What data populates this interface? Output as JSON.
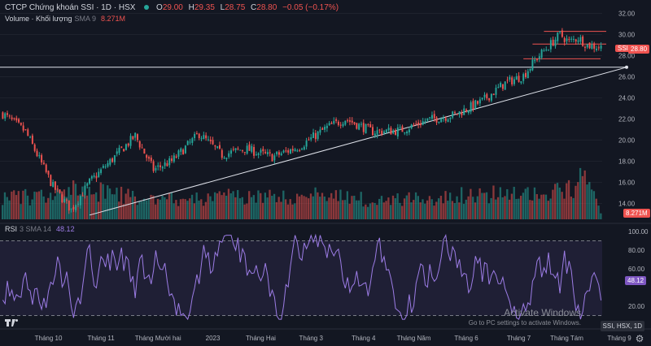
{
  "header": {
    "title": "CTCP Chứng khoán SSI · 1D · HSX",
    "ohlc": [
      {
        "label": "O",
        "value": "29.00"
      },
      {
        "label": "H",
        "value": "29.35"
      },
      {
        "label": "L",
        "value": "28.75"
      },
      {
        "label": "C",
        "value": "28.80"
      }
    ],
    "change": "−0.05 (−0.17%)"
  },
  "volume_legend": {
    "name": "Volume · Khối lượng",
    "ma": "SMA 9",
    "value": "8.271M"
  },
  "rsi_legend": {
    "name": "RSI",
    "params": "3 SMA 14",
    "value": "48.12"
  },
  "price_badge": {
    "symbol": "SSI",
    "value": "28.80"
  },
  "volume_badge": "8.271M",
  "rsi_badge": "48.12",
  "symbol_tag": "SSI, HSX, 1D",
  "watermark": {
    "line1": "Activate Windows",
    "line2": "Go to PC settings to activate Windows."
  },
  "colors": {
    "up": "#26a69a",
    "down": "#ef5350",
    "rsi": "#9c7ce5",
    "background": "#131722"
  },
  "chart_data": {
    "type": "candlestick",
    "price_axis_ticks": [
      "32.00",
      "30.00",
      "28.00",
      "26.00",
      "24.00",
      "22.00",
      "20.00",
      "18.00",
      "16.00",
      "14.00"
    ],
    "price_range": [
      12.5,
      32.5
    ],
    "rsi_axis_ticks": [
      "100.00",
      "80.00",
      "60.00",
      "20.00"
    ],
    "rsi_range": [
      0,
      100
    ],
    "rsi_levels": [
      90,
      10
    ],
    "x_axis_labels": [
      "Tháng 10",
      "Tháng 11",
      "Tháng Mười hai",
      "2023",
      "Tháng Hai",
      "Tháng 3",
      "Tháng 4",
      "Tháng Năm",
      "Tháng 6",
      "Tháng 7",
      "Tháng Tám",
      "Tháng 9"
    ],
    "horizontal_line_price": 26.9,
    "trendline": {
      "from_price": 12.9,
      "to_price": 26.9
    },
    "range_lines": [
      30.3,
      29.1,
      27.7
    ],
    "price_anchors": [
      [
        0,
        22.5
      ],
      [
        10,
        20.8
      ],
      [
        22,
        15.6
      ],
      [
        30,
        13.4
      ],
      [
        38,
        16.0
      ],
      [
        48,
        18.2
      ],
      [
        58,
        20.4
      ],
      [
        66,
        17.2
      ],
      [
        74,
        18.0
      ],
      [
        86,
        20.6
      ],
      [
        96,
        18.6
      ],
      [
        106,
        19.2
      ],
      [
        118,
        18.4
      ],
      [
        130,
        19.4
      ],
      [
        142,
        21.2
      ],
      [
        150,
        22.0
      ],
      [
        162,
        20.8
      ],
      [
        174,
        20.9
      ],
      [
        186,
        21.9
      ],
      [
        198,
        22.4
      ],
      [
        210,
        23.7
      ],
      [
        220,
        25.4
      ],
      [
        228,
        26.1
      ],
      [
        234,
        27.8
      ],
      [
        240,
        29.1
      ],
      [
        244,
        30.0
      ],
      [
        248,
        29.3
      ],
      [
        252,
        29.7
      ],
      [
        256,
        29.0
      ],
      [
        262,
        28.8
      ]
    ],
    "volume_anchors": [
      [
        0,
        0.42
      ],
      [
        20,
        0.4
      ],
      [
        35,
        0.58
      ],
      [
        45,
        0.48
      ],
      [
        60,
        0.4
      ],
      [
        80,
        0.36
      ],
      [
        100,
        0.42
      ],
      [
        120,
        0.4
      ],
      [
        140,
        0.44
      ],
      [
        160,
        0.36
      ],
      [
        180,
        0.37
      ],
      [
        200,
        0.44
      ],
      [
        215,
        0.46
      ],
      [
        235,
        0.43
      ],
      [
        250,
        0.55
      ],
      [
        255,
        1.0
      ],
      [
        258,
        0.86
      ],
      [
        262,
        0.13
      ]
    ]
  }
}
